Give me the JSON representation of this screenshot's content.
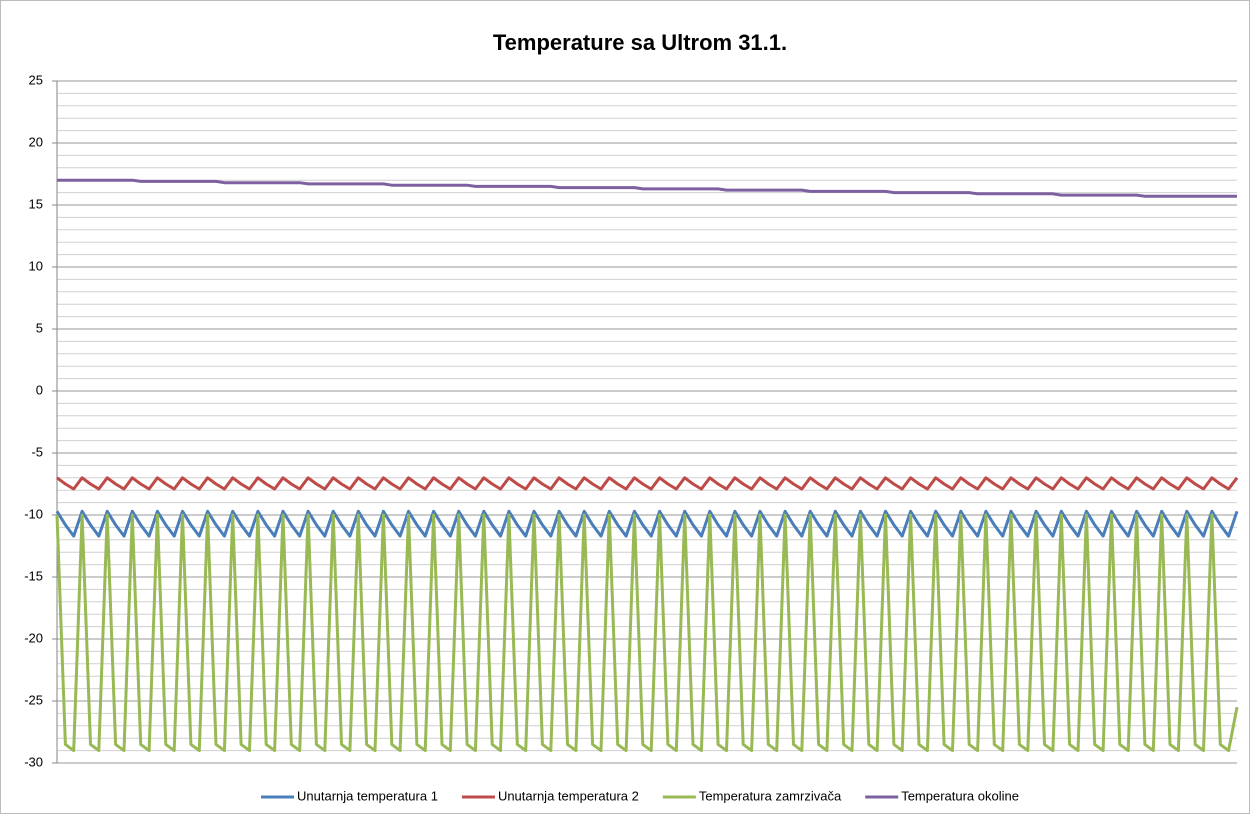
{
  "chart_data": {
    "type": "line",
    "title": "Temperature sa Ultrom 31.1.",
    "ylim": [
      -30,
      25
    ],
    "yticks": [
      -30,
      -25,
      -20,
      -15,
      -10,
      -5,
      0,
      5,
      10,
      15,
      20,
      25
    ],
    "grid": true,
    "grid_minor_step": 1,
    "legend": "bottom",
    "series": [
      {
        "name": "Unutarnja temperatura 1",
        "color": "#4a7ebb",
        "values": [
          -9.7,
          -10.8,
          -11.7,
          -9.7,
          -10.8,
          -11.7,
          -9.7,
          -10.8,
          -11.7,
          -9.7,
          -10.8,
          -11.7,
          -9.7,
          -10.8,
          -11.7,
          -9.7,
          -10.8,
          -11.7,
          -9.7,
          -10.8,
          -11.7,
          -9.7,
          -10.8,
          -11.7,
          -9.7,
          -10.8,
          -11.7,
          -9.7,
          -10.8,
          -11.7,
          -9.7,
          -10.8,
          -11.7,
          -9.7,
          -10.8,
          -11.7,
          -9.7,
          -10.8,
          -11.7,
          -9.7,
          -10.8,
          -11.7,
          -9.7,
          -10.8,
          -11.7,
          -9.7,
          -10.8,
          -11.7,
          -9.7,
          -10.8,
          -11.7,
          -9.7,
          -10.8,
          -11.7,
          -9.7,
          -10.8,
          -11.7,
          -9.7,
          -10.8,
          -11.7,
          -9.7,
          -10.8,
          -11.7,
          -9.7,
          -10.8,
          -11.7,
          -9.7,
          -10.8,
          -11.7,
          -9.7,
          -10.8,
          -11.7,
          -9.7,
          -10.8,
          -11.7,
          -9.7,
          -10.8,
          -11.7,
          -9.7,
          -10.8,
          -11.7,
          -9.7,
          -10.8,
          -11.7,
          -9.7,
          -10.8,
          -11.7,
          -9.7,
          -10.8,
          -11.7,
          -9.7,
          -10.8,
          -11.7,
          -9.7,
          -10.8,
          -11.7,
          -9.7,
          -10.8,
          -11.7,
          -9.7,
          -10.8,
          -11.7,
          -9.7,
          -10.8,
          -11.7,
          -9.7,
          -10.8,
          -11.7,
          -9.7,
          -10.8,
          -11.7,
          -9.7,
          -10.8,
          -11.7,
          -9.7,
          -10.8,
          -11.7,
          -9.7,
          -10.8,
          -11.7,
          -9.7,
          -10.8,
          -11.7,
          -9.7,
          -10.8,
          -11.7,
          -9.7,
          -10.8,
          -11.7,
          -9.7,
          -10.8,
          -11.7,
          -9.7,
          -10.8,
          -11.7,
          -9.7,
          -10.8,
          -11.7,
          -9.7,
          -10.8,
          -11.7,
          -9.7
        ]
      },
      {
        "name": "Unutarnja temperatura 2",
        "color": "#be4b48",
        "values": [
          -7.0,
          -7.5,
          -7.9,
          -7.0,
          -7.5,
          -7.9,
          -7.0,
          -7.5,
          -7.9,
          -7.0,
          -7.5,
          -7.9,
          -7.0,
          -7.5,
          -7.9,
          -7.0,
          -7.5,
          -7.9,
          -7.0,
          -7.5,
          -7.9,
          -7.0,
          -7.5,
          -7.9,
          -7.0,
          -7.5,
          -7.9,
          -7.0,
          -7.5,
          -7.9,
          -7.0,
          -7.5,
          -7.9,
          -7.0,
          -7.5,
          -7.9,
          -7.0,
          -7.5,
          -7.9,
          -7.0,
          -7.5,
          -7.9,
          -7.0,
          -7.5,
          -7.9,
          -7.0,
          -7.5,
          -7.9,
          -7.0,
          -7.5,
          -7.9,
          -7.0,
          -7.5,
          -7.9,
          -7.0,
          -7.5,
          -7.9,
          -7.0,
          -7.5,
          -7.9,
          -7.0,
          -7.5,
          -7.9,
          -7.0,
          -7.5,
          -7.9,
          -7.0,
          -7.5,
          -7.9,
          -7.0,
          -7.5,
          -7.9,
          -7.0,
          -7.5,
          -7.9,
          -7.0,
          -7.5,
          -7.9,
          -7.0,
          -7.5,
          -7.9,
          -7.0,
          -7.5,
          -7.9,
          -7.0,
          -7.5,
          -7.9,
          -7.0,
          -7.5,
          -7.9,
          -7.0,
          -7.5,
          -7.9,
          -7.0,
          -7.5,
          -7.9,
          -7.0,
          -7.5,
          -7.9,
          -7.0,
          -7.5,
          -7.9,
          -7.0,
          -7.5,
          -7.9,
          -7.0,
          -7.5,
          -7.9,
          -7.0,
          -7.5,
          -7.9,
          -7.0,
          -7.5,
          -7.9,
          -7.0,
          -7.5,
          -7.9,
          -7.0,
          -7.5,
          -7.9,
          -7.0,
          -7.5,
          -7.9,
          -7.0,
          -7.5,
          -7.9,
          -7.0,
          -7.5,
          -7.9,
          -7.0,
          -7.5,
          -7.9,
          -7.0,
          -7.5,
          -7.9,
          -7.0,
          -7.5,
          -7.9,
          -7.0,
          -7.5,
          -7.9,
          -7.0
        ]
      },
      {
        "name": "Temperatura zamrzivača",
        "color": "#98b954",
        "values": [
          -10,
          -28.5,
          -29,
          -10,
          -28.5,
          -29,
          -10,
          -28.5,
          -29,
          -10,
          -28.5,
          -29,
          -10,
          -28.5,
          -29,
          -10,
          -28.5,
          -29,
          -10,
          -28.5,
          -29,
          -10,
          -28.5,
          -29,
          -10,
          -28.5,
          -29,
          -10,
          -28.5,
          -29,
          -10,
          -28.5,
          -29,
          -10,
          -28.5,
          -29,
          -10,
          -28.5,
          -29,
          -10,
          -28.5,
          -29,
          -10,
          -28.5,
          -29,
          -10,
          -28.5,
          -29,
          -10,
          -28.5,
          -29,
          -10,
          -28.5,
          -29,
          -10,
          -28.5,
          -29,
          -10,
          -28.5,
          -29,
          -10,
          -28.5,
          -29,
          -10,
          -28.5,
          -29,
          -10,
          -28.5,
          -29,
          -10,
          -28.5,
          -29,
          -10,
          -28.5,
          -29,
          -10,
          -28.5,
          -29,
          -10,
          -28.5,
          -29,
          -10,
          -28.5,
          -29,
          -10,
          -28.5,
          -29,
          -10,
          -28.5,
          -29,
          -10,
          -28.5,
          -29,
          -10,
          -28.5,
          -29,
          -10,
          -28.5,
          -29,
          -10,
          -28.5,
          -29,
          -10,
          -28.5,
          -29,
          -10,
          -28.5,
          -29,
          -10,
          -28.5,
          -29,
          -10,
          -28.5,
          -29,
          -10,
          -28.5,
          -29,
          -10,
          -28.5,
          -29,
          -10,
          -28.5,
          -29,
          -10,
          -28.5,
          -29,
          -10,
          -28.5,
          -29,
          -10,
          -28.5,
          -29,
          -10,
          -28.5,
          -29,
          -10,
          -28.5,
          -29,
          -10,
          -28.5,
          -29,
          -25.5
        ]
      },
      {
        "name": "Temperatura okoline",
        "color": "#7d60a0",
        "values": [
          17.0,
          17.0,
          17.0,
          17.0,
          17.0,
          17.0,
          17.0,
          17.0,
          17.0,
          17.0,
          16.9,
          16.9,
          16.9,
          16.9,
          16.9,
          16.9,
          16.9,
          16.9,
          16.9,
          16.9,
          16.8,
          16.8,
          16.8,
          16.8,
          16.8,
          16.8,
          16.8,
          16.8,
          16.8,
          16.8,
          16.7,
          16.7,
          16.7,
          16.7,
          16.7,
          16.7,
          16.7,
          16.7,
          16.7,
          16.7,
          16.6,
          16.6,
          16.6,
          16.6,
          16.6,
          16.6,
          16.6,
          16.6,
          16.6,
          16.6,
          16.5,
          16.5,
          16.5,
          16.5,
          16.5,
          16.5,
          16.5,
          16.5,
          16.5,
          16.5,
          16.4,
          16.4,
          16.4,
          16.4,
          16.4,
          16.4,
          16.4,
          16.4,
          16.4,
          16.4,
          16.3,
          16.3,
          16.3,
          16.3,
          16.3,
          16.3,
          16.3,
          16.3,
          16.3,
          16.3,
          16.2,
          16.2,
          16.2,
          16.2,
          16.2,
          16.2,
          16.2,
          16.2,
          16.2,
          16.2,
          16.1,
          16.1,
          16.1,
          16.1,
          16.1,
          16.1,
          16.1,
          16.1,
          16.1,
          16.1,
          16.0,
          16.0,
          16.0,
          16.0,
          16.0,
          16.0,
          16.0,
          16.0,
          16.0,
          16.0,
          15.9,
          15.9,
          15.9,
          15.9,
          15.9,
          15.9,
          15.9,
          15.9,
          15.9,
          15.9,
          15.8,
          15.8,
          15.8,
          15.8,
          15.8,
          15.8,
          15.8,
          15.8,
          15.8,
          15.8,
          15.7,
          15.7,
          15.7,
          15.7,
          15.7,
          15.7,
          15.7,
          15.7,
          15.7,
          15.7,
          15.7,
          15.7
        ]
      }
    ]
  }
}
